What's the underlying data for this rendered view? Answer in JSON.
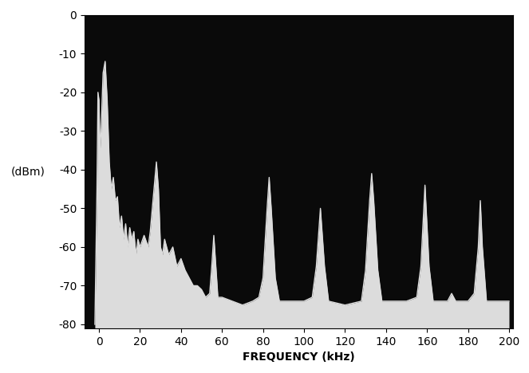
{
  "chart_data": {
    "type": "line",
    "xlabel": "FREQUENCY (kHz)",
    "ylabel": "(dBm)",
    "x": [
      -2,
      -1,
      -0.5,
      0,
      0.5,
      1,
      2,
      3,
      4,
      5,
      6,
      7,
      8,
      9,
      10,
      11,
      12,
      13,
      14,
      15,
      16,
      17,
      18,
      19,
      20,
      22,
      24,
      25,
      26,
      27,
      28,
      29,
      30,
      31,
      32,
      34,
      36,
      38,
      40,
      42,
      44,
      46,
      48,
      50,
      52,
      54,
      55,
      56,
      57,
      58,
      60,
      65,
      70,
      75,
      78,
      80,
      82,
      83,
      84,
      86,
      88,
      95,
      100,
      104,
      106,
      108,
      110,
      112,
      120,
      128,
      130,
      132,
      133,
      134,
      136,
      138,
      145,
      150,
      155,
      157,
      159,
      161,
      163,
      170,
      172,
      174,
      180,
      183,
      185,
      186,
      187,
      189,
      195,
      200
    ],
    "values": [
      -80,
      -45,
      -20,
      -22,
      -35,
      -30,
      -15,
      -12,
      -22,
      -38,
      -45,
      -42,
      -48,
      -47,
      -55,
      -52,
      -58,
      -54,
      -60,
      -55,
      -58,
      -56,
      -62,
      -58,
      -60,
      -57,
      -60,
      -56,
      -50,
      -44,
      -38,
      -45,
      -60,
      -62,
      -58,
      -62,
      -60,
      -65,
      -63,
      -66,
      -68,
      -70,
      -70,
      -71,
      -73,
      -72,
      -65,
      -57,
      -65,
      -73,
      -73,
      -74,
      -75,
      -74,
      -73,
      -68,
      -50,
      -42,
      -50,
      -68,
      -74,
      -74,
      -74,
      -73,
      -65,
      -50,
      -65,
      -74,
      -75,
      -74,
      -66,
      -48,
      -41,
      -48,
      -66,
      -74,
      -74,
      -74,
      -73,
      -65,
      -44,
      -65,
      -74,
      -74,
      -72,
      -74,
      -74,
      -72,
      -60,
      -48,
      -60,
      -74,
      -74,
      -74
    ],
    "color": "#dcdcdc",
    "xlim": [
      -7,
      202
    ],
    "ylim": [
      -81,
      0
    ],
    "xticks": [
      0,
      20,
      40,
      60,
      80,
      100,
      120,
      140,
      160,
      180,
      200
    ],
    "yticks": [
      -80,
      -70,
      -60,
      -50,
      -40,
      -30,
      -20,
      -10,
      0
    ],
    "grid": false
  }
}
